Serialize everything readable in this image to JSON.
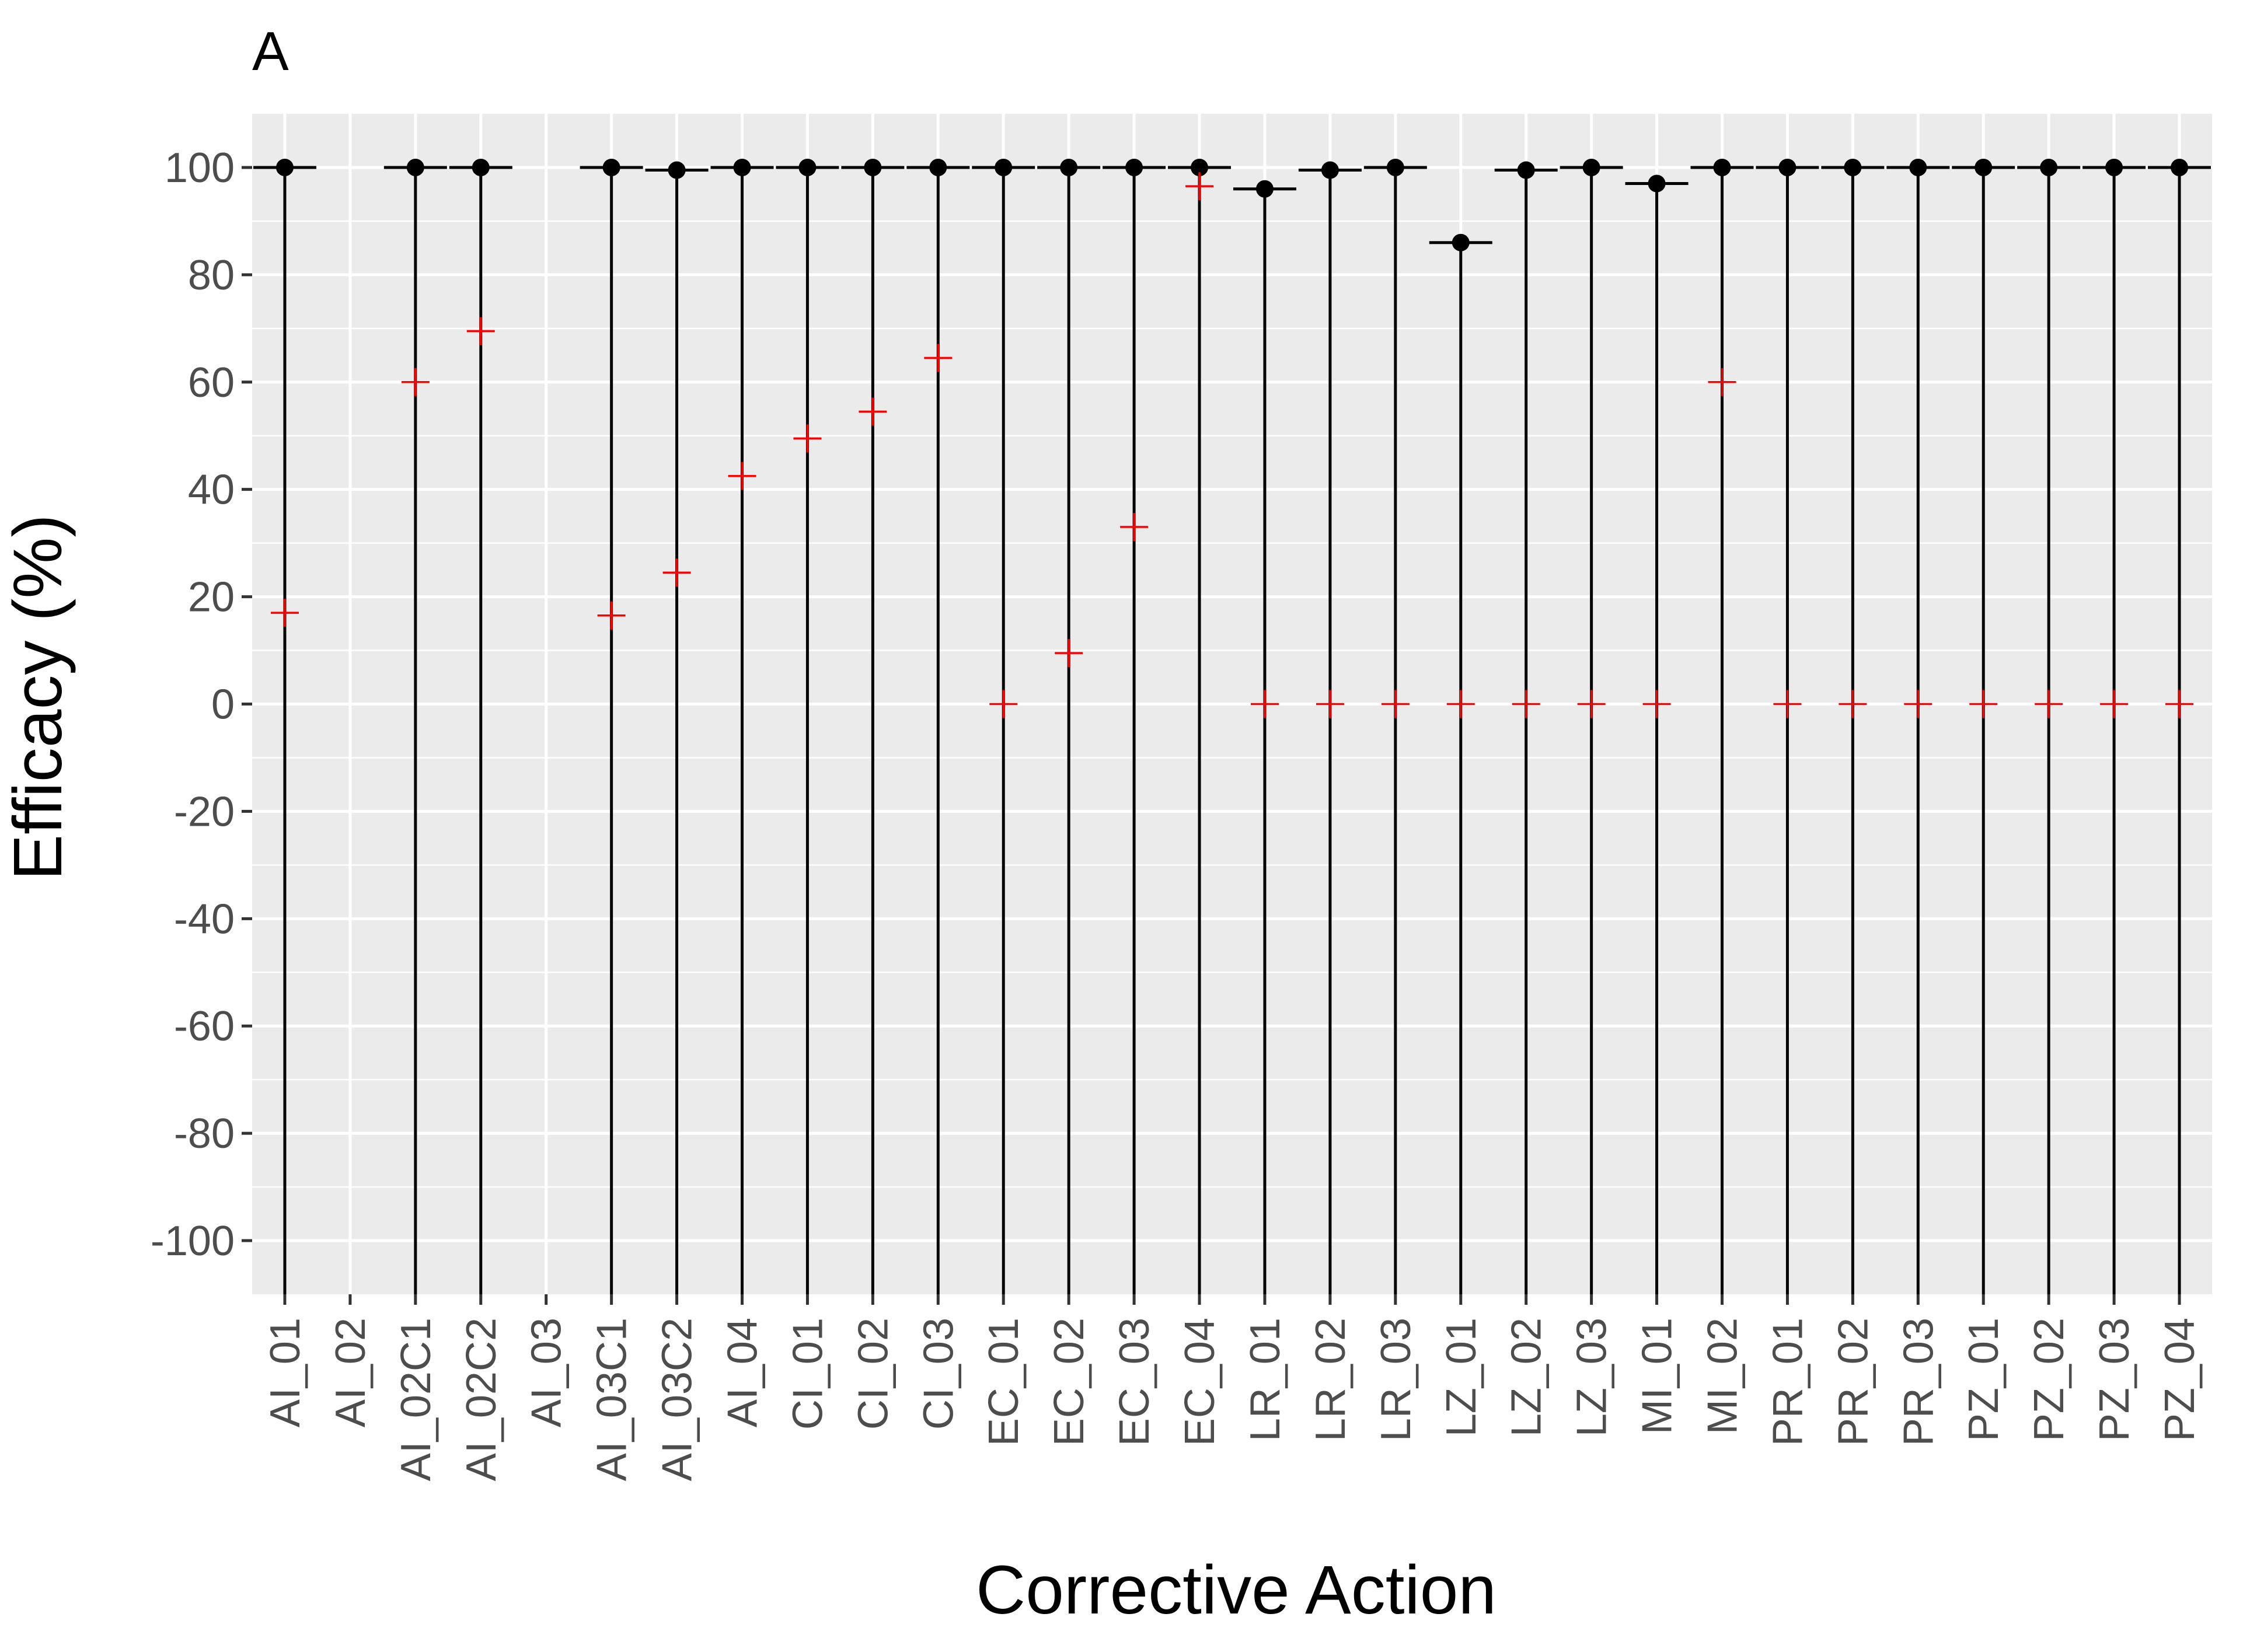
{
  "chart_data": {
    "type": "scatter",
    "title": "A",
    "xlabel": "Corrective Action",
    "ylabel": "Efficacy (%)",
    "ylim": [
      -110,
      110
    ],
    "yticks": [
      -100,
      -80,
      -60,
      -40,
      -20,
      0,
      20,
      40,
      60,
      80,
      100
    ],
    "ytick_labels": [
      "-100",
      "-80",
      "-60",
      "-40",
      "-20",
      "0",
      "20",
      "40",
      "60",
      "80",
      "100"
    ],
    "grid": true,
    "categories": [
      "AI_01",
      "AI_02",
      "AI_02C1",
      "AI_02C2",
      "AI_03",
      "AI_03C1",
      "AI_03C2",
      "AI_04",
      "CI_01",
      "CI_02",
      "CI_03",
      "EC_01",
      "EC_02",
      "EC_03",
      "EC_04",
      "LR_01",
      "LR_02",
      "LR_03",
      "LZ_01",
      "LZ_02",
      "LZ_03",
      "MI_01",
      "MI_02",
      "PR_01",
      "PR_02",
      "PR_03",
      "PZ_01",
      "PZ_02",
      "PZ_03",
      "PZ_04"
    ],
    "series": [
      {
        "marker": "point",
        "color": "#000000",
        "values": [
          100,
          null,
          100,
          100,
          null,
          100,
          99.5,
          100,
          100,
          100,
          100,
          100,
          100,
          100,
          100,
          96,
          99.5,
          100,
          86,
          99.5,
          100,
          97,
          100,
          100,
          100,
          100,
          100,
          100,
          100,
          100
        ]
      },
      {
        "marker": "cross",
        "color": "#ff0000",
        "values": [
          17,
          null,
          60,
          69.5,
          null,
          16.5,
          24.5,
          42.5,
          49.5,
          54.5,
          64.5,
          0,
          9.5,
          33,
          96.5,
          0,
          0,
          0,
          0,
          0,
          0,
          0,
          60,
          0,
          0,
          0,
          0,
          0,
          0,
          0
        ]
      }
    ],
    "lower_bounds": [
      -110,
      null,
      -110,
      -110,
      null,
      -110,
      -110,
      -110,
      -110,
      -110,
      -110,
      -110,
      -110,
      -110,
      -110,
      -110,
      -110,
      -110,
      -110,
      -110,
      -110,
      -110,
      -110,
      -110,
      -110,
      -110,
      -110,
      -110,
      -110,
      -110
    ],
    "colors": {
      "panel_background": "#ebebeb",
      "grid": "#ffffff",
      "tick_text": "#4d4d4d",
      "interval": "#000000",
      "point": "#000000",
      "cross": "#ff0000"
    }
  }
}
